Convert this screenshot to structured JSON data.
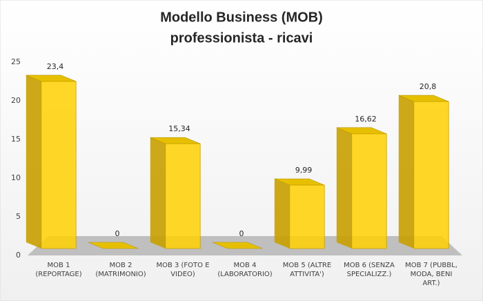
{
  "chart_data": {
    "type": "bar3d",
    "title": [
      "Modello Business (MOB)",
      "professionista - ricavi"
    ],
    "categories": [
      "MOB 1 (REPORTAGE)",
      "MOB 2 (MATRIMONIO)",
      "MOB 3 (FOTO E VIDEO)",
      "MOB 4 (LABORATORIO)",
      "MOB 5 (ALTRE ATTIVITA')",
      "MOB 6 (SENZA SPECIALIZZ.)",
      "MOB 7 (PUBBL, MODA, BENI ART.)"
    ],
    "values": [
      23.4,
      0,
      15.34,
      0,
      9.99,
      16.62,
      20.8
    ],
    "value_labels": [
      "23,4",
      "0",
      "15,34",
      "0",
      "9,99",
      "16,62",
      "20,8"
    ],
    "color": "#ffd000",
    "ylim": [
      0,
      25
    ],
    "yticks": [
      0,
      5,
      10,
      15,
      20,
      25
    ],
    "grid": false
  }
}
